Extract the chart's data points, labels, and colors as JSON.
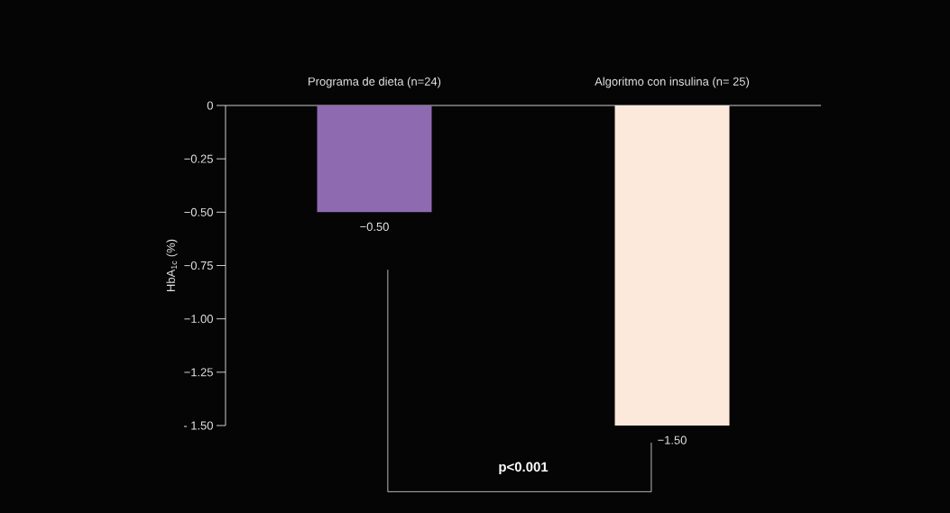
{
  "chart_data": {
    "type": "bar",
    "categories": [
      "Programa de dieta (n=24)",
      "Algoritmo con insulina (n= 25)"
    ],
    "values": [
      -0.5,
      -1.5
    ],
    "colors": [
      "#8e6bb0",
      "#fde9dc"
    ],
    "value_labels": [
      "−0.50",
      "−1.50"
    ],
    "ylabel": "HbA$_{1c}$ (%)",
    "ylim": [
      -1.5,
      0
    ],
    "yticks": [
      0,
      {
        "value": -0.25,
        "label": "−0.25"
      },
      {
        "value": -0.5,
        "label": "−0.50"
      },
      {
        "value": -0.75,
        "label": "−0.75"
      },
      {
        "value": -1.0,
        "label": "−1.00"
      },
      {
        "value": -1.25,
        "label": "−1.25"
      },
      {
        "value": -1.5,
        "label": "- 1.50"
      }
    ],
    "annotations": [
      "p<0.001"
    ]
  }
}
